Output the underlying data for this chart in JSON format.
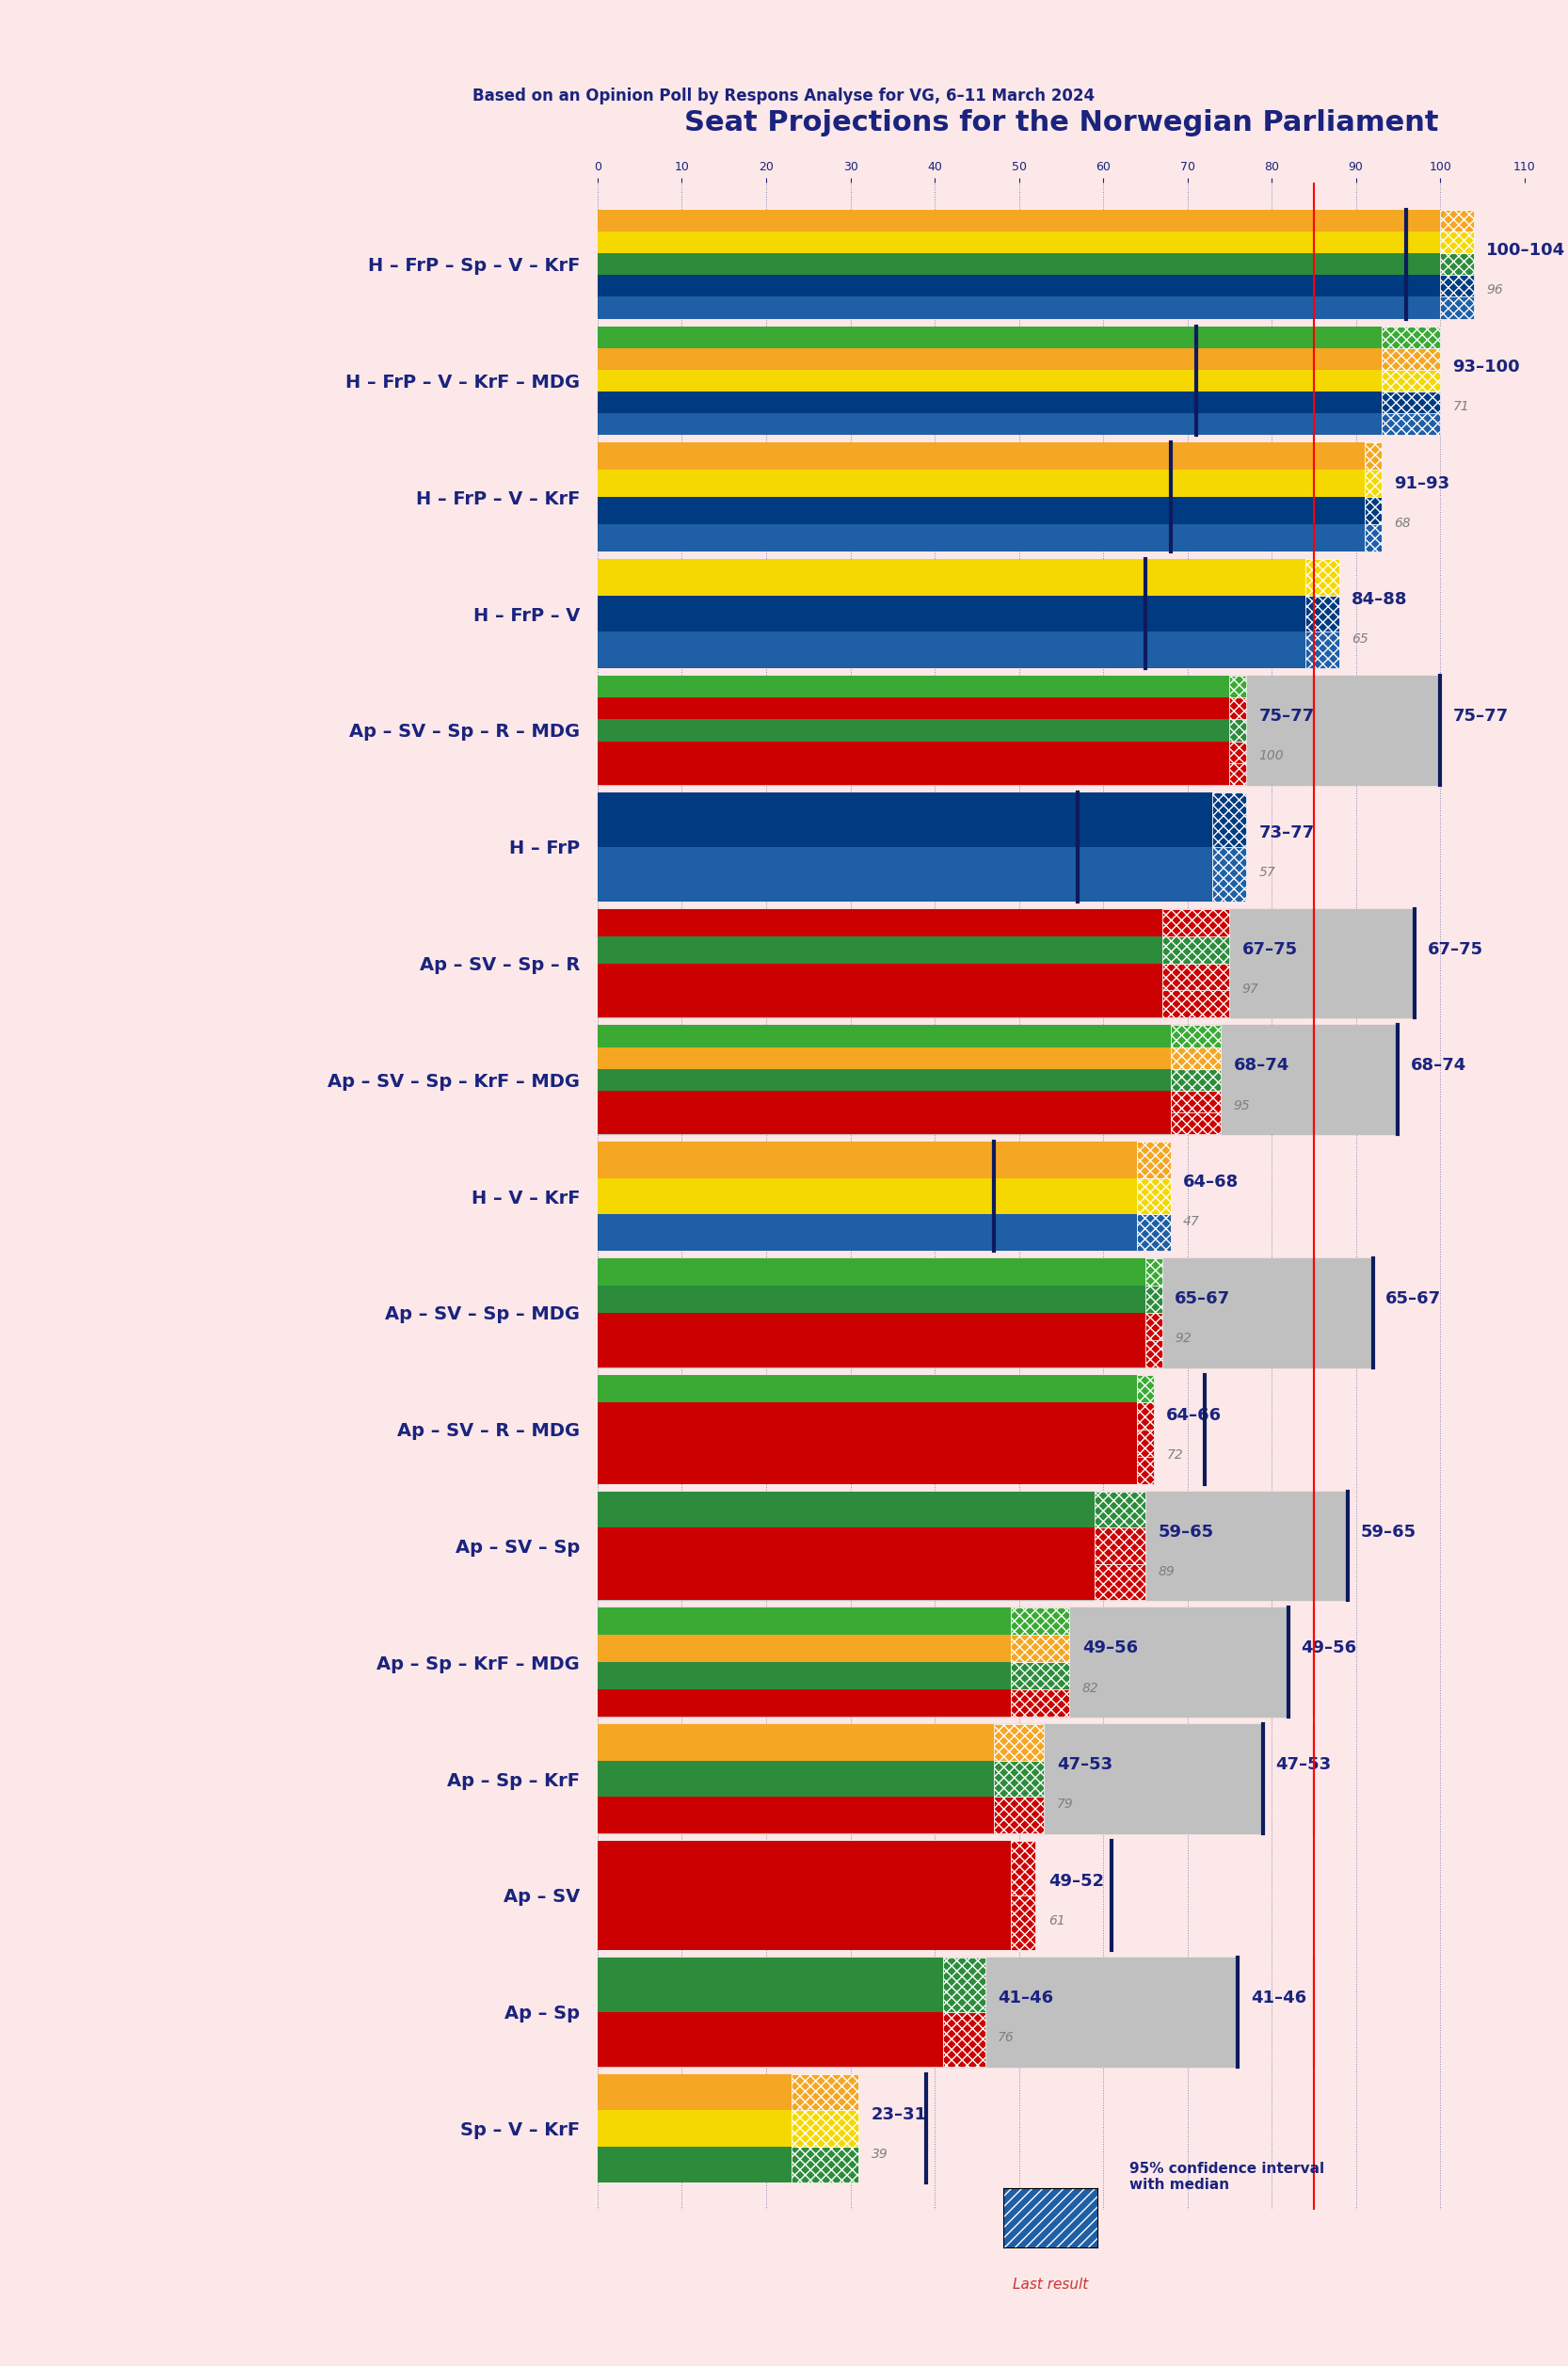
{
  "title": "Seat Projections for the Norwegian Parliament",
  "subtitle": "Based on an Opinion Poll by Respons Analyse for VG, 6–11 March 2024",
  "background_color": "#fce8e8",
  "coalitions": [
    {
      "label": "H – FrP – Sp – V – KrF",
      "min": 100,
      "max": 104,
      "last": 96,
      "ci_bar": null,
      "type": "right"
    },
    {
      "label": "H – FrP – V – KrF – MDG",
      "min": 93,
      "max": 100,
      "last": 71,
      "ci_bar": null,
      "type": "right"
    },
    {
      "label": "H – FrP – V – KrF",
      "min": 91,
      "max": 93,
      "last": 68,
      "ci_bar": null,
      "type": "right"
    },
    {
      "label": "H – FrP – V",
      "min": 84,
      "max": 88,
      "last": 65,
      "ci_bar": null,
      "type": "right"
    },
    {
      "label": "Ap – SV – Sp – R – MDG",
      "min": 75,
      "max": 77,
      "last": 100,
      "ci_bar": 100,
      "type": "left"
    },
    {
      "label": "H – FrP",
      "min": 73,
      "max": 77,
      "last": 57,
      "ci_bar": null,
      "type": "right"
    },
    {
      "label": "Ap – SV – Sp – R",
      "min": 67,
      "max": 75,
      "last": 97,
      "ci_bar": 97,
      "type": "left"
    },
    {
      "label": "Ap – SV – Sp – KrF – MDG",
      "min": 68,
      "max": 74,
      "last": 95,
      "ci_bar": 95,
      "type": "left"
    },
    {
      "label": "H – V – KrF",
      "min": 64,
      "max": 68,
      "last": 47,
      "ci_bar": null,
      "type": "right"
    },
    {
      "label": "Ap – SV – Sp – MDG",
      "min": 65,
      "max": 67,
      "last": 92,
      "ci_bar": 92,
      "type": "left"
    },
    {
      "label": "Ap – SV – R – MDG",
      "min": 64,
      "max": 66,
      "last": 72,
      "ci_bar": null,
      "type": "left"
    },
    {
      "label": "Ap – SV – Sp",
      "min": 59,
      "max": 65,
      "last": 89,
      "ci_bar": 89,
      "type": "left"
    },
    {
      "label": "Ap – Sp – KrF – MDG",
      "min": 49,
      "max": 56,
      "last": 82,
      "ci_bar": 82,
      "type": "left"
    },
    {
      "label": "Ap – Sp – KrF",
      "min": 47,
      "max": 53,
      "last": 79,
      "ci_bar": 79,
      "type": "left"
    },
    {
      "label": "Ap – SV",
      "min": 49,
      "max": 52,
      "last": 61,
      "ci_bar": null,
      "type": "left",
      "underline": true
    },
    {
      "label": "Ap – Sp",
      "min": 41,
      "max": 46,
      "last": 76,
      "ci_bar": 76,
      "type": "left"
    },
    {
      "label": "Sp – V – KrF",
      "min": 23,
      "max": 31,
      "last": 39,
      "ci_bar": null,
      "type": "left"
    }
  ],
  "majority_line": 85,
  "x_max": 110,
  "party_colors": {
    "H": "#1f5fa6",
    "FrP": "#003580",
    "Sp": "#006400",
    "V": "#ffd700",
    "KrF": "#f5a623",
    "MDG": "#3cb371",
    "Ap": "#cc0000",
    "SV": "#cc0000",
    "R": "#cc0000"
  },
  "right_colors": [
    "#1f5fa6",
    "#003580",
    "#006400",
    "#ffd700"
  ],
  "left_colors": [
    "#cc0000",
    "#3cb371",
    "#cc0000",
    "#ffd700"
  ],
  "bar_height": 0.55,
  "ci_color": "#c0c0c0",
  "last_color": "#1f3080",
  "label_color": "#1a237e",
  "number_color": "#1a237e",
  "secondary_color": "#7f7f7f"
}
